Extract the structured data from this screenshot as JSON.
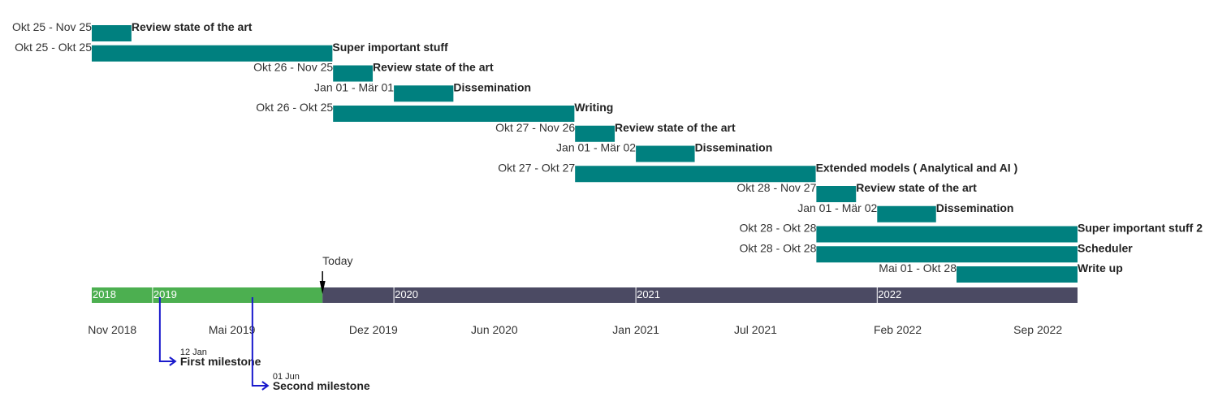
{
  "chart_data": {
    "type": "gantt",
    "x_range": [
      "2018-10-01",
      "2022-10-31"
    ],
    "today": {
      "label": "Today",
      "date": "2019-09-15"
    },
    "colors": {
      "task": "#00807f",
      "timeline_past": "#4caf50",
      "timeline_future": "#4b4a63",
      "milestone": "#1a1acc",
      "today_marker": "#000000"
    },
    "tasks": [
      {
        "name": "Review state of the art",
        "range": "Okt 25 - Nov 25",
        "start": "2018-10-01",
        "end": "2018-11-30"
      },
      {
        "name": "Super important stuff",
        "range": "Okt 25 - Okt 25",
        "start": "2018-10-01",
        "end": "2019-09-30"
      },
      {
        "name": "Review state of the art",
        "range": "Okt 26 - Nov 25",
        "start": "2019-10-01",
        "end": "2019-11-30"
      },
      {
        "name": "Dissemination",
        "range": "Jan 01 - Mär 01",
        "start": "2020-01-01",
        "end": "2020-03-31"
      },
      {
        "name": "Writing",
        "range": "Okt 26 - Okt 25",
        "start": "2019-10-01",
        "end": "2020-09-30"
      },
      {
        "name": "Review state of the art",
        "range": "Okt 27 - Nov 26",
        "start": "2020-10-01",
        "end": "2020-11-30"
      },
      {
        "name": "Dissemination",
        "range": "Jan 01 - Mär 02",
        "start": "2021-01-01",
        "end": "2021-03-31"
      },
      {
        "name": "Extended models ( Analytical and AI )",
        "range": "Okt 27 - Okt 27",
        "start": "2020-10-01",
        "end": "2021-09-30"
      },
      {
        "name": "Review state of the art",
        "range": "Okt 28 - Nov 27",
        "start": "2021-10-01",
        "end": "2021-11-30"
      },
      {
        "name": "Dissemination",
        "range": "Jan 01 - Mär 02",
        "start": "2022-01-01",
        "end": "2022-03-31"
      },
      {
        "name": "Super important stuff 2",
        "range": "Okt 28 - Okt 28",
        "start": "2021-10-01",
        "end": "2022-10-31"
      },
      {
        "name": "Scheduler",
        "range": "Okt 28 - Okt 28",
        "start": "2021-10-01",
        "end": "2022-10-31"
      },
      {
        "name": "Write up",
        "range": "Mai 01 - Okt 28",
        "start": "2022-05-01",
        "end": "2022-10-31"
      }
    ],
    "years": [
      {
        "label": "2018",
        "date": "2018-10-01"
      },
      {
        "label": "2019",
        "date": "2019-01-01"
      },
      {
        "label": "2020",
        "date": "2020-01-01"
      },
      {
        "label": "2021",
        "date": "2021-01-01"
      },
      {
        "label": "2022",
        "date": "2022-01-01"
      }
    ],
    "ticks": [
      {
        "label": "Nov 2018",
        "date": "2018-11-01"
      },
      {
        "label": "Mai 2019",
        "date": "2019-05-01"
      },
      {
        "label": "Dez 2019",
        "date": "2019-12-01"
      },
      {
        "label": "Jun 2020",
        "date": "2020-06-01"
      },
      {
        "label": "Jan 2021",
        "date": "2021-01-01"
      },
      {
        "label": "Jul 2021",
        "date": "2021-07-01"
      },
      {
        "label": "Feb 2022",
        "date": "2022-02-01"
      },
      {
        "label": "Sep 2022",
        "date": "2022-09-01"
      }
    ],
    "milestones": [
      {
        "date_label": "12 Jan",
        "name": "First milestone",
        "date": "2019-01-12"
      },
      {
        "date_label": "01 Jun",
        "name": "Second milestone",
        "date": "2019-06-01"
      }
    ]
  }
}
